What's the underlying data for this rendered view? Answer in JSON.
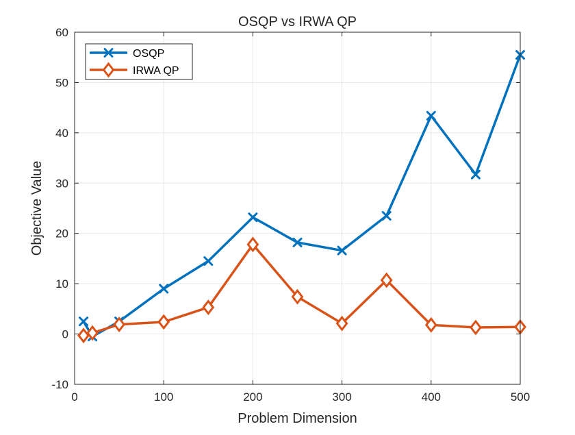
{
  "chart_data": {
    "type": "line",
    "title": "OSQP vs IRWA QP",
    "xlabel": "Problem Dimension",
    "ylabel": "Objective Value",
    "xlim": [
      0,
      500
    ],
    "ylim": [
      -10,
      60
    ],
    "xticks": [
      0,
      100,
      200,
      300,
      400,
      500
    ],
    "yticks": [
      -10,
      0,
      10,
      20,
      30,
      40,
      50,
      60
    ],
    "xtick_labels": [
      "0",
      "100",
      "200",
      "300",
      "400",
      "500"
    ],
    "ytick_labels": [
      "-10",
      "0",
      "10",
      "20",
      "30",
      "40",
      "50",
      "60"
    ],
    "grid": true,
    "legend_position": "top-left",
    "x": [
      10,
      20,
      50,
      100,
      150,
      200,
      250,
      300,
      350,
      400,
      450,
      500
    ],
    "series": [
      {
        "name": "OSQP",
        "color": "#0072BD",
        "marker": "x",
        "values": [
          2.5,
          -0.5,
          2.5,
          9.0,
          14.5,
          23.2,
          18.2,
          16.6,
          23.5,
          43.4,
          31.7,
          55.5
        ]
      },
      {
        "name": "IRWA QP",
        "color": "#D95319",
        "marker": "diamond",
        "values": [
          -0.3,
          0.2,
          1.9,
          2.4,
          5.3,
          17.8,
          7.4,
          2.1,
          10.7,
          1.8,
          1.3,
          1.4
        ]
      }
    ]
  }
}
